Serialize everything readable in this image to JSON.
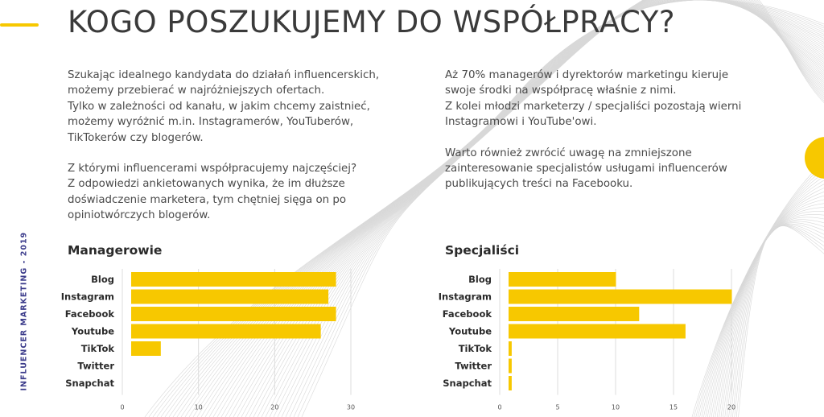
{
  "header": {
    "title": "KOGO POSZUKUJEMY DO WSPÓŁPRACY?",
    "side_label": "INFLUENCER MARKETING - 2019"
  },
  "left_text": {
    "p1": [
      "Szukając idealnego kandydata do działań influencerskich,",
      "możemy przebierać w najróżniejszych ofertach.",
      "Tylko w zależności od kanału, w jakim chcemy zaistnieć,",
      "możemy wyróżnić m.in. Instagramerów, YouTuberów,",
      "TikTokerów czy blogerów."
    ],
    "p2": [
      "Z którymi influencerami współpracujemy najczęściej?",
      "Z odpowiedzi ankietowanych wynika, że im dłuższe",
      "doświadczenie marketera, tym chętniej sięga on po",
      "opiniotwórczych blogerów."
    ]
  },
  "right_text": {
    "p1": [
      "Aż 70% managerów i dyrektorów marketingu kieruje",
      "swoje środki na współpracę właśnie z nimi.",
      "Z kolei młodzi marketerzy / specjaliści pozostają wierni",
      "Instagramowi i YouTube'owi."
    ],
    "p2": [
      "Warto również zwrócić uwagę na zmniejszone",
      "zainteresowanie specjalistów usługami influencerów",
      "publikujących treści na Facebooku."
    ]
  },
  "colors": {
    "bar": "#f7c800",
    "accent": "#f7c800",
    "side_label": "#3a3a8a"
  },
  "chart_data": [
    {
      "type": "bar",
      "orientation": "horizontal",
      "title": "Managerowie",
      "categories": [
        "Blog",
        "Instagram",
        "Facebook",
        "Youtube",
        "TikTok",
        "Twitter",
        "Snapchat"
      ],
      "values": [
        28,
        27,
        28,
        26,
        5,
        1,
        1
      ],
      "xlim": [
        0,
        30
      ],
      "xticks": [
        0,
        10,
        20,
        30
      ],
      "grid": true
    },
    {
      "type": "bar",
      "orientation": "horizontal",
      "title": "Specjaliści",
      "categories": [
        "Blog",
        "Instagram",
        "Facebook",
        "Youtube",
        "TikTok",
        "Twitter",
        "Snapchat"
      ],
      "values": [
        10,
        20,
        12,
        16,
        1,
        1,
        1
      ],
      "xlim": [
        0,
        20
      ],
      "xticks": [
        0,
        5,
        10,
        15,
        20
      ],
      "grid": true
    }
  ]
}
